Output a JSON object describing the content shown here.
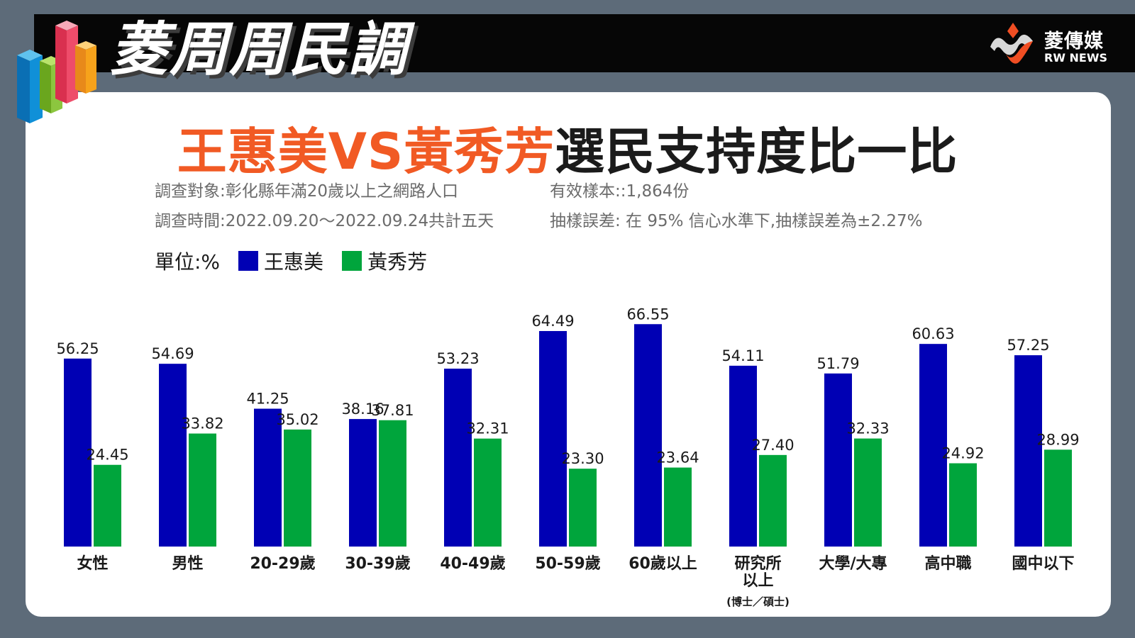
{
  "header": {
    "brand_title": "菱周周民調",
    "logo_zh": "菱傳媒",
    "logo_en": "RW NEWS"
  },
  "headline": {
    "accent": "王惠美VS黃秀芳",
    "rest": "選民支持度比一比"
  },
  "survey": {
    "target": "調查對象:彰化縣年滿20歲以上之網路人口",
    "period": "調查時間:2022.09.20～2022.09.24共計五天",
    "sample": "有效樣本::1,864份",
    "error": "抽樣誤差: 在 95% 信心水準下,抽樣誤差為±2.27%"
  },
  "legend": {
    "unit": "單位:%"
  },
  "colors": {
    "series_a": "#0000b4",
    "series_b": "#00a53c",
    "accent": "#f15a24"
  },
  "chart_data": {
    "type": "bar",
    "categories": [
      "女性",
      "男性",
      "20-29歲",
      "30-39歲",
      "40-49歲",
      "50-59歲",
      "60歲以上",
      "研究所以上",
      "大學/大專",
      "高中職",
      "國中以下"
    ],
    "category_sublabels": [
      "",
      "",
      "",
      "",
      "",
      "",
      "",
      "(博士／碩士)",
      "",
      "",
      ""
    ],
    "series": [
      {
        "name": "王惠美",
        "values": [
          56.25,
          54.69,
          41.25,
          38.16,
          53.23,
          64.49,
          66.55,
          54.11,
          51.79,
          60.63,
          57.25
        ]
      },
      {
        "name": "黃秀芳",
        "values": [
          24.45,
          33.82,
          35.02,
          37.81,
          32.31,
          23.3,
          23.64,
          27.4,
          32.33,
          24.92,
          28.99
        ]
      }
    ],
    "value_labels": [
      [
        "56.25",
        "54.69",
        "41.25",
        "38.16",
        "53.23",
        "64.49",
        "66.55",
        "54.11",
        "51.79",
        "60.63",
        "57.25"
      ],
      [
        "24.45",
        "33.82",
        "35.02",
        "37.81",
        "32.31",
        "23.30",
        "23.64",
        "27.40",
        "32.33",
        "24.92",
        "28.99"
      ]
    ],
    "ylim": [
      0,
      70
    ],
    "grid": false,
    "legend_position": "top-left"
  }
}
